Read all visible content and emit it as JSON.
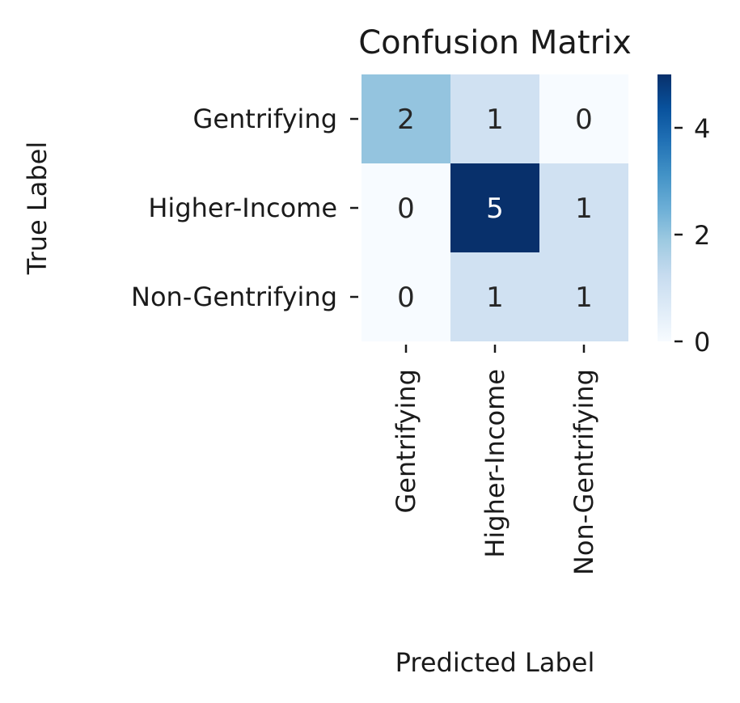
{
  "chart_data": {
    "type": "heatmap",
    "title": "Confusion Matrix",
    "xlabel": "Predicted Label",
    "ylabel": "True Label",
    "x_categories": [
      "Gentrifying",
      "Higher-Income",
      "Non-Gentrifying"
    ],
    "y_categories": [
      "Gentrifying",
      "Higher-Income",
      "Non-Gentrifying"
    ],
    "values": [
      [
        2,
        1,
        0
      ],
      [
        0,
        5,
        1
      ],
      [
        0,
        1,
        1
      ]
    ],
    "colormap": "Blues",
    "vmin": 0,
    "vmax": 5,
    "colorbar_ticks": [
      0,
      2,
      4
    ],
    "grid": false
  }
}
